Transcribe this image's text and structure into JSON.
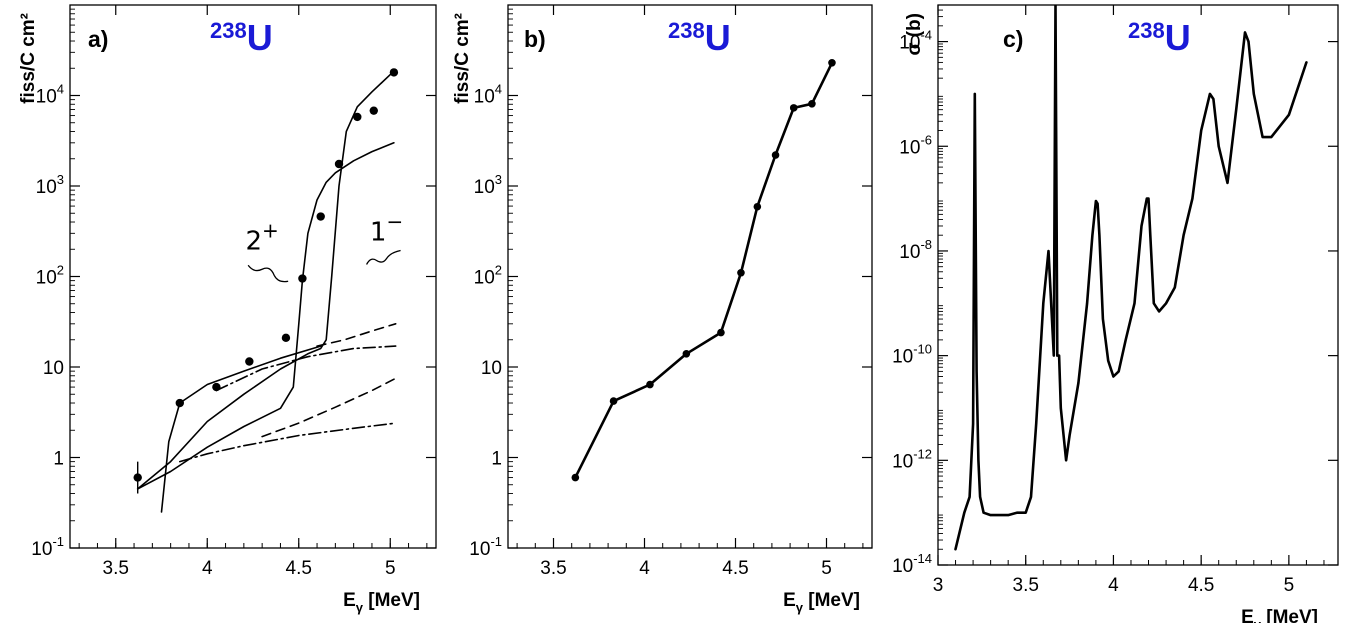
{
  "chart_data": [
    {
      "panel": "a)",
      "type": "scatter",
      "isotope": {
        "mass": "238",
        "symbol": "U"
      },
      "xlabel": {
        "main": "E",
        "sub": "γ",
        "rest": " [MeV]"
      },
      "ylabel": "fiss/C cm²",
      "xlim": [
        3.25,
        5.25
      ],
      "ylim": [
        0.1,
        100000
      ],
      "yscale": "log",
      "xticks": [
        "3.5",
        "4",
        "4.5",
        "5"
      ],
      "yticks": [
        {
          "value": 0.1,
          "base": "10",
          "exp": "-1"
        },
        {
          "value": 1,
          "base": "1",
          "exp": ""
        },
        {
          "value": 10,
          "base": "10",
          "exp": ""
        },
        {
          "value": 100,
          "base": "10",
          "exp": "2"
        },
        {
          "value": 1000,
          "base": "10",
          "exp": "3"
        },
        {
          "value": 10000,
          "base": "10",
          "exp": "4"
        }
      ],
      "points": [
        {
          "x": 3.62,
          "y": 0.6,
          "err": [
            0.4,
            0.9
          ]
        },
        {
          "x": 3.85,
          "y": 4.0
        },
        {
          "x": 4.05,
          "y": 6.0
        },
        {
          "x": 4.23,
          "y": 11.5
        },
        {
          "x": 4.43,
          "y": 21
        },
        {
          "x": 4.52,
          "y": 95
        },
        {
          "x": 4.62,
          "y": 460
        },
        {
          "x": 4.72,
          "y": 1750
        },
        {
          "x": 4.82,
          "y": 5800
        },
        {
          "x": 4.91,
          "y": 6800
        },
        {
          "x": 5.02,
          "y": 18000
        }
      ],
      "series": [
        {
          "style": "solid",
          "x": [
            3.62,
            3.8,
            4.0,
            4.2,
            4.4,
            4.47,
            4.5,
            4.52,
            4.55,
            4.6,
            4.65,
            4.7,
            4.8,
            4.9,
            5.02
          ],
          "y": [
            0.45,
            0.7,
            1.3,
            2.2,
            3.5,
            6,
            30,
            90,
            300,
            700,
            1100,
            1400,
            1900,
            2400,
            3000
          ]
        },
        {
          "style": "solid",
          "x": [
            3.62,
            3.8,
            4.0,
            4.2,
            4.4,
            4.55,
            4.62,
            4.65,
            4.68,
            4.72,
            4.76,
            4.82,
            4.9,
            5.0
          ],
          "y": [
            0.45,
            0.9,
            2.5,
            5,
            9.5,
            14,
            16,
            20,
            100,
            1000,
            4000,
            7500,
            11000,
            17000
          ]
        },
        {
          "style": "solid",
          "x": [
            3.75,
            3.79,
            3.85,
            4.0,
            4.2,
            4.4,
            4.62
          ],
          "y": [
            0.25,
            1.5,
            4,
            6.4,
            9,
            12.5,
            17
          ]
        },
        {
          "style": "dashdot",
          "x": [
            4.05,
            4.3,
            4.55,
            4.8,
            5.03
          ],
          "y": [
            5.5,
            9.5,
            13,
            16,
            17
          ]
        },
        {
          "style": "dashed",
          "x": [
            4.6,
            4.75,
            4.9,
            5.03
          ],
          "y": [
            17,
            20,
            25,
            30
          ]
        },
        {
          "style": "dashdot",
          "x": [
            3.85,
            4.0,
            4.2,
            4.5,
            4.8,
            5.03
          ],
          "y": [
            0.9,
            1.1,
            1.35,
            1.75,
            2.1,
            2.4
          ]
        },
        {
          "style": "dashed",
          "x": [
            4.3,
            4.5,
            4.7,
            4.9,
            5.03
          ],
          "y": [
            1.7,
            2.4,
            3.6,
            5.5,
            7.5
          ]
        }
      ],
      "annotations": [
        {
          "text": "2",
          "sup": "+",
          "x": 4.3,
          "y": 200
        },
        {
          "text": "1",
          "sup": "−",
          "x": 4.98,
          "y": 250
        }
      ]
    },
    {
      "panel": "b)",
      "type": "line",
      "isotope": {
        "mass": "238",
        "symbol": "U"
      },
      "xlabel": {
        "main": "E",
        "sub": "γ",
        "rest": " [MeV]"
      },
      "ylabel": "fiss/C cm²",
      "xlim": [
        3.25,
        5.25
      ],
      "ylim": [
        0.1,
        100000
      ],
      "yscale": "log",
      "xticks": [
        "3.5",
        "4",
        "4.5",
        "5"
      ],
      "yticks": [
        {
          "value": 0.1,
          "base": "10",
          "exp": "-1"
        },
        {
          "value": 1,
          "base": "1",
          "exp": ""
        },
        {
          "value": 10,
          "base": "10",
          "exp": ""
        },
        {
          "value": 100,
          "base": "10",
          "exp": "2"
        },
        {
          "value": 1000,
          "base": "10",
          "exp": "3"
        },
        {
          "value": 10000,
          "base": "10",
          "exp": "4"
        }
      ],
      "x": [
        3.62,
        3.83,
        4.03,
        4.23,
        4.42,
        4.53,
        4.62,
        4.72,
        4.82,
        4.92,
        5.03
      ],
      "y": [
        0.6,
        4.2,
        6.4,
        14,
        24,
        110,
        590,
        2200,
        7300,
        8100,
        23000
      ]
    },
    {
      "panel": "c)",
      "type": "line",
      "isotope": {
        "mass": "238",
        "symbol": "U"
      },
      "xlabel": {
        "main": "E",
        "sub": "γ",
        "rest": " [MeV]"
      },
      "ylabel": "σ (b)",
      "xlim": [
        3.0,
        5.28
      ],
      "ylim": [
        1e-14,
        0.0005
      ],
      "yscale": "log",
      "xticks": [
        "3",
        "3.5",
        "4",
        "4.5",
        "5"
      ],
      "yticks": [
        {
          "value": 1e-14,
          "base": "10",
          "exp": "-14"
        },
        {
          "value": 1e-12,
          "base": "10",
          "exp": "-12"
        },
        {
          "value": 1e-10,
          "base": "10",
          "exp": "-10"
        },
        {
          "value": 1e-08,
          "base": "10",
          "exp": "-8"
        },
        {
          "value": 1e-06,
          "base": "10",
          "exp": "-6"
        },
        {
          "value": 0.0001,
          "base": "10",
          "exp": "-4"
        }
      ],
      "x": [
        3.1,
        3.15,
        3.18,
        3.2,
        3.21,
        3.22,
        3.23,
        3.24,
        3.26,
        3.3,
        3.35,
        3.4,
        3.45,
        3.5,
        3.53,
        3.56,
        3.6,
        3.63,
        3.66,
        3.67,
        3.68,
        3.69,
        3.7,
        3.73,
        3.75,
        3.8,
        3.85,
        3.88,
        3.9,
        3.91,
        3.92,
        3.94,
        3.97,
        4.0,
        4.03,
        4.07,
        4.12,
        4.16,
        4.19,
        4.2,
        4.21,
        4.23,
        4.26,
        4.3,
        4.35,
        4.4,
        4.45,
        4.5,
        4.55,
        4.57,
        4.6,
        4.65,
        4.7,
        4.75,
        4.77,
        4.8,
        4.85,
        4.9,
        5.0,
        5.1
      ],
      "y": [
        2e-14,
        1e-13,
        2e-13,
        5e-12,
        1e-05,
        5e-11,
        1e-12,
        2e-13,
        1e-13,
        9e-14,
        9e-14,
        9e-14,
        1e-13,
        1e-13,
        2e-13,
        5e-12,
        1e-09,
        1e-08,
        1e-10,
        0.0005,
        1e-10,
        1e-10,
        1e-11,
        1e-12,
        3e-12,
        3e-11,
        1e-09,
        2e-08,
        9e-08,
        8e-08,
        2e-08,
        5e-10,
        8e-11,
        4e-11,
        5e-11,
        2e-10,
        1e-09,
        3e-08,
        1e-07,
        1e-07,
        2e-08,
        1e-09,
        7e-10,
        1e-09,
        2e-09,
        2e-08,
        1e-07,
        2e-06,
        1e-05,
        8e-06,
        1e-06,
        2e-07,
        5e-06,
        0.00015,
        0.0001,
        1e-05,
        1.5e-06,
        1.5e-06,
        4e-06,
        4e-05
      ]
    }
  ]
}
